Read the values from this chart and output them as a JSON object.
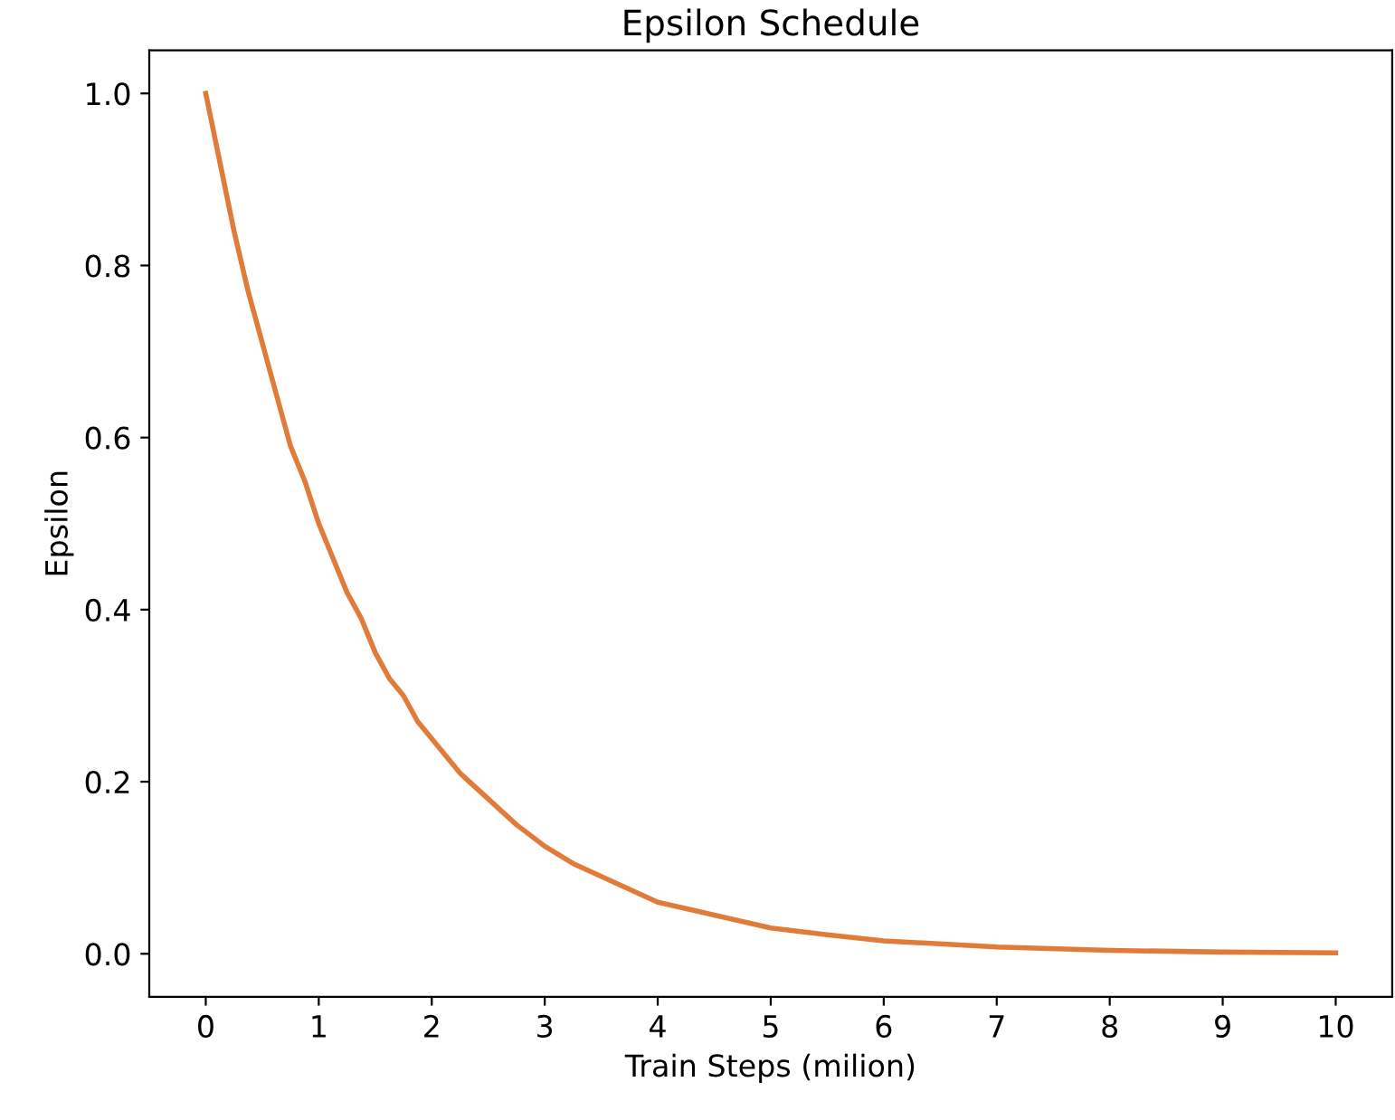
{
  "chart_data": {
    "type": "line",
    "title": "Epsilon Schedule",
    "xlabel": "Train Steps (milion)",
    "ylabel": "Epsilon",
    "x": [
      0,
      0.125,
      0.25,
      0.375,
      0.5,
      0.625,
      0.75,
      0.875,
      1,
      1.125,
      1.25,
      1.375,
      1.5,
      1.625,
      1.75,
      1.875,
      2,
      2.25,
      2.5,
      2.75,
      3,
      3.25,
      3.5,
      3.75,
      4,
      4.5,
      5,
      5.5,
      6,
      7,
      8,
      9,
      10
    ],
    "series": [
      {
        "color": "#e07b39",
        "values": [
          1.0,
          0.92,
          0.84,
          0.77,
          0.71,
          0.65,
          0.59,
          0.55,
          0.5,
          0.46,
          0.42,
          0.39,
          0.35,
          0.32,
          0.3,
          0.27,
          0.25,
          0.21,
          0.18,
          0.15,
          0.125,
          0.105,
          0.09,
          0.075,
          0.06,
          0.045,
          0.03,
          0.022,
          0.015,
          0.008,
          0.004,
          0.002,
          0.001
        ]
      }
    ],
    "xlim": [
      -0.5,
      10.5
    ],
    "xticks": [
      0,
      1,
      2,
      3,
      4,
      5,
      6,
      7,
      8,
      9,
      10
    ],
    "ylim": [
      -0.05,
      1.05
    ],
    "yticks": [
      {
        "value": 0,
        "label": "0.0"
      },
      0.2,
      0.4,
      0.6,
      0.8,
      {
        "value": 1,
        "label": "1.0"
      }
    ],
    "grid": false,
    "legend": false,
    "marker": "none",
    "line_style": "solid"
  }
}
